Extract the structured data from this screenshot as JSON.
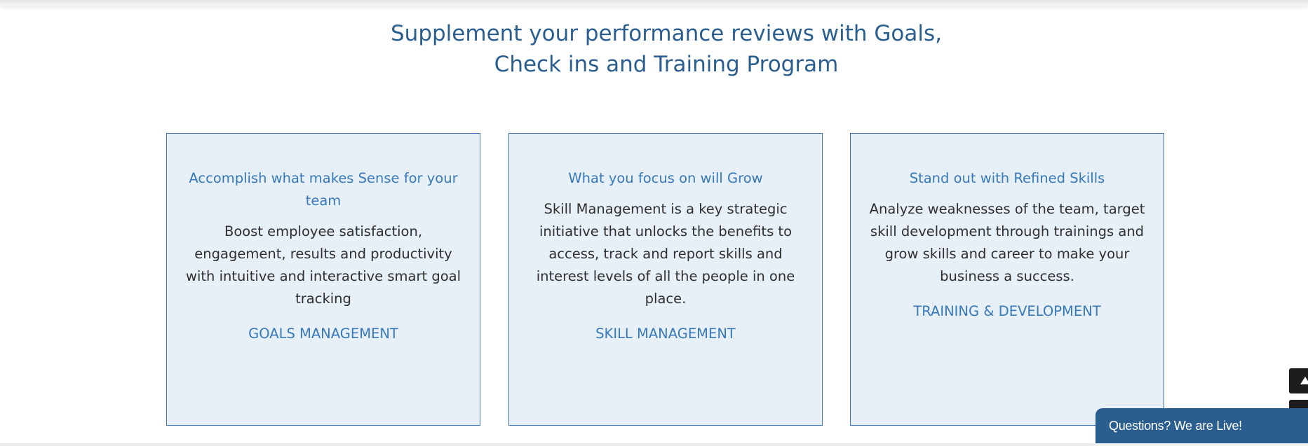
{
  "section": {
    "heading_line1": "Supplement your performance reviews with Goals,",
    "heading_line2": "Check ins and Training Program"
  },
  "cards": [
    {
      "title": "Accomplish what makes Sense for your team",
      "text": "Boost employee satisfaction, engagement, results and productivity with intuitive and interactive smart goal tracking",
      "link": "GOALS MANAGEMENT"
    },
    {
      "title": "What you focus on will Grow",
      "text": "Skill Management is a key strategic initiative that unlocks the benefits to access, track and report skills and interest levels of all the people in one place.",
      "link": "SKILL MANAGEMENT"
    },
    {
      "title": "Stand out with Refined Skills",
      "text": "Analyze weaknesses of the team, target skill development through trainings and grow skills and career to make your business a success.",
      "link": "TRAINING & DEVELOPMENT"
    }
  ],
  "chat": {
    "label": "Questions? We are Live!"
  },
  "icons": {
    "scroll_top": "arrow-up-icon"
  },
  "colors": {
    "heading": "#2a5e8f",
    "card_title": "#3879b8",
    "card_background": "#e8f0f7",
    "card_border": "#3a74b3",
    "chat_background": "#2a5e8f"
  }
}
